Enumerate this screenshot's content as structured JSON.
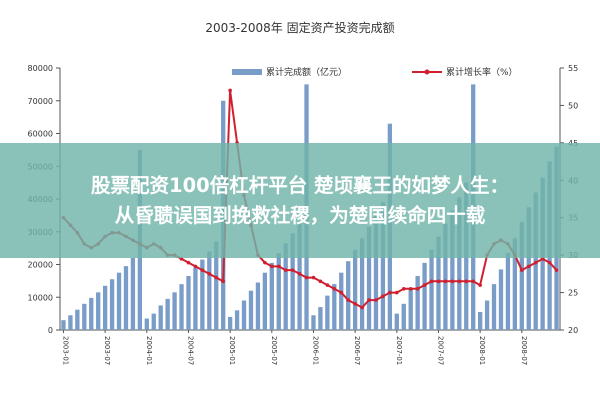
{
  "chart_data": {
    "type": "bar",
    "title": "2003-2008年 固定资产投资完成额",
    "x": [
      "2003-01",
      "2003-02",
      "2003-03",
      "2003-04",
      "2003-05",
      "2003-06",
      "2003-07",
      "2003-08",
      "2003-09",
      "2003-10",
      "2003-11",
      "2003-12",
      "2004-01",
      "2004-02",
      "2004-03",
      "2004-04",
      "2004-05",
      "2004-06",
      "2004-07",
      "2004-08",
      "2004-09",
      "2004-10",
      "2004-11",
      "2004-12",
      "2005-01",
      "2005-02",
      "2005-03",
      "2005-04",
      "2005-05",
      "2005-06",
      "2005-07",
      "2005-08",
      "2005-09",
      "2005-10",
      "2005-11",
      "2005-12",
      "2006-01",
      "2006-02",
      "2006-03",
      "2006-04",
      "2006-05",
      "2006-06",
      "2006-07",
      "2006-08",
      "2006-09",
      "2006-10",
      "2006-11",
      "2006-12",
      "2007-01",
      "2007-02",
      "2007-03",
      "2007-04",
      "2007-05",
      "2007-06",
      "2007-07",
      "2007-08",
      "2007-09",
      "2007-10",
      "2007-11",
      "2007-12",
      "2008-01",
      "2008-02",
      "2008-03",
      "2008-04",
      "2008-05",
      "2008-06",
      "2008-07",
      "2008-08",
      "2008-09",
      "2008-10",
      "2008-11",
      "2008-12"
    ],
    "x_tick_labels": [
      "2003-01",
      "2003-07",
      "2004-01",
      "2004-07",
      "2005-01",
      "2005-07",
      "2006-01",
      "2006-07",
      "2007-01",
      "2007-07",
      "2008-01",
      "2008-07"
    ],
    "series": [
      {
        "name": "累计完成额（亿元）",
        "color": "#7a9cc8",
        "axis": "left",
        "values": [
          3000,
          4500,
          6200,
          8000,
          9800,
          11500,
          13500,
          15500,
          17500,
          19500,
          22000,
          55000,
          3500,
          5000,
          7500,
          9500,
          11500,
          14000,
          16500,
          19000,
          21500,
          24000,
          27000,
          70000,
          4000,
          6000,
          9000,
          12000,
          14500,
          17500,
          20500,
          23500,
          26500,
          29500,
          33000,
          75000,
          4500,
          7000,
          10500,
          14000,
          17500,
          21000,
          24500,
          28000,
          31500,
          35000,
          39000,
          63000,
          5000,
          8000,
          12500,
          16500,
          20500,
          24500,
          28500,
          32500,
          36500,
          40500,
          45000,
          75000,
          5500,
          9000,
          14000,
          18500,
          23500,
          28000,
          33000,
          37500,
          42000,
          46500,
          51500,
          56000
        ]
      },
      {
        "name": "累计增长率（%）",
        "color": "#d02030",
        "axis": "right",
        "type": "line",
        "values": [
          35,
          34,
          33,
          31.5,
          31,
          31.5,
          32.5,
          33,
          33,
          32.5,
          32,
          31.5,
          31,
          31.5,
          31,
          30,
          30,
          29.5,
          29,
          28.5,
          28,
          27.5,
          27,
          26.5,
          52,
          45,
          38,
          34,
          30,
          29,
          28.5,
          28.5,
          28,
          28,
          27.5,
          27,
          27,
          26.5,
          26,
          25.5,
          25,
          24,
          23.5,
          23,
          24,
          24,
          24.5,
          25,
          25,
          25.5,
          25.5,
          25.5,
          26,
          26.5,
          26.5,
          26.5,
          26.5,
          26.5,
          26.5,
          26.5,
          26,
          30,
          31.5,
          32,
          31.5,
          30,
          28,
          28.5,
          29,
          29.5,
          29,
          28
        ]
      }
    ],
    "yleft_ticks": [
      "0",
      "10000",
      "20000",
      "30000",
      "40000",
      "50000",
      "60000",
      "70000",
      "80000"
    ],
    "yleft_lim": [
      0,
      80000
    ],
    "yright_ticks": [
      "20",
      "25",
      "30",
      "35",
      "40",
      "45",
      "50",
      "55"
    ],
    "yright_lim": [
      20,
      55
    ],
    "legend_position": "top"
  },
  "overlay": {
    "line1": "股票配资100倍杠杆平台 楚顷襄王的如梦人生：",
    "line2": "从昏聩误国到挽救社稷，为楚国续命四十载"
  }
}
